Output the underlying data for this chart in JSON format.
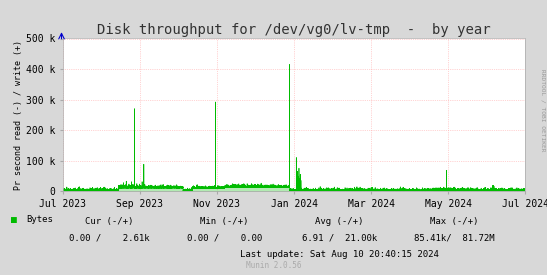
{
  "title": "Disk throughput for /dev/vg0/lv-tmp  -  by year",
  "ylabel": "Pr second read (-) / write (+)",
  "background_color": "#d8d8d8",
  "plot_bg_color": "#ffffff",
  "grid_color": "#ffaaaa",
  "line_color": "#00bb00",
  "fill_color": "#00bb00",
  "ylim": [
    0,
    500000
  ],
  "yticks": [
    0,
    100000,
    200000,
    300000,
    400000,
    500000
  ],
  "ytick_labels": [
    "0",
    "100 k",
    "200 k",
    "300 k",
    "400 k",
    "500 k"
  ],
  "xtick_labels": [
    "Jul 2023",
    "Sep 2023",
    "Nov 2023",
    "Jan 2024",
    "Mar 2024",
    "May 2024",
    "Jul 2024"
  ],
  "legend_label": "Bytes",
  "legend_color": "#00bb00",
  "munin_version": "Munin 2.0.56",
  "rrdtool_label": "RRDTOOL / TOBI OETIKER",
  "footer_line1": "Cur (-/+)              Min (-/+)          Avg (-/+)              Max (-/+)",
  "footer_line2": "0.00 /    2.61k       0.00 /    0.00       6.91 /  21.00k      85.41k/  81.72M",
  "last_update": "Last update: Sat Aug 10 20:40:15 2024",
  "title_fontsize": 10,
  "tick_fontsize": 7,
  "small_fontsize": 6.5,
  "tiny_fontsize": 5.5
}
